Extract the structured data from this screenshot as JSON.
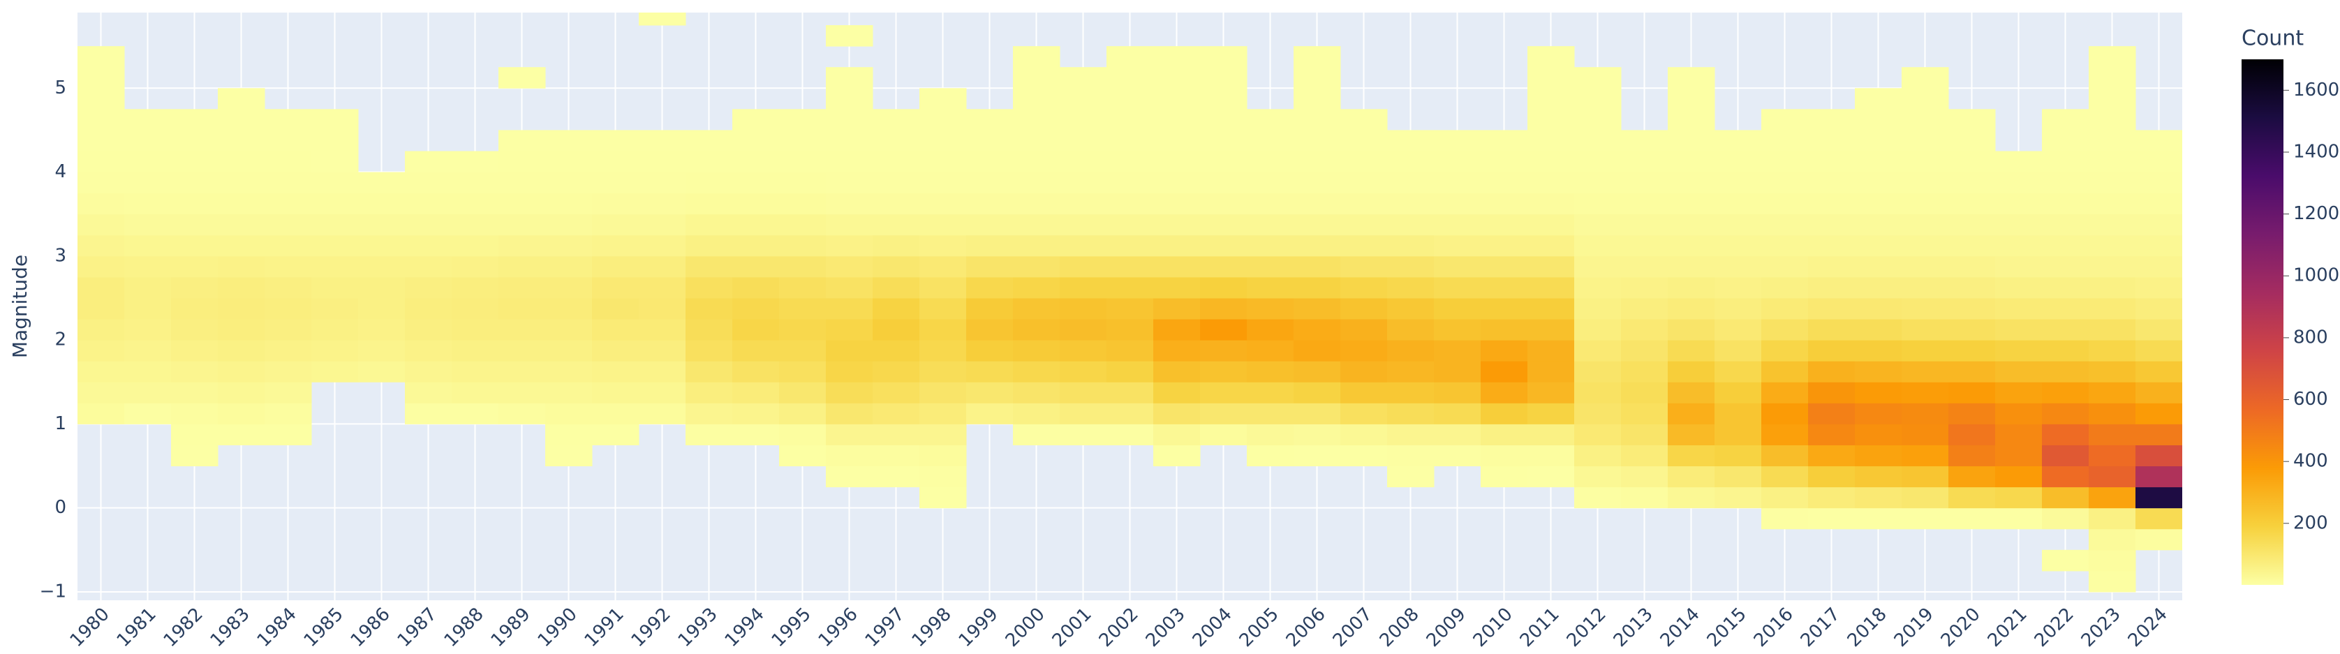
{
  "chart_data": {
    "type": "heatmap",
    "y_label": "Magnitude",
    "colorbar_title": "Count",
    "categories": [
      "1980",
      "1981",
      "1982",
      "1983",
      "1984",
      "1985",
      "1986",
      "1987",
      "1988",
      "1989",
      "1990",
      "1991",
      "1992",
      "1993",
      "1994",
      "1995",
      "1996",
      "1997",
      "1998",
      "1999",
      "2000",
      "2001",
      "2002",
      "2003",
      "2004",
      "2005",
      "2006",
      "2007",
      "2008",
      "2009",
      "2010",
      "2011",
      "2012",
      "2013",
      "2014",
      "2015",
      "2016",
      "2017",
      "2018",
      "2019",
      "2020",
      "2021",
      "2022",
      "2023",
      "2024"
    ],
    "ybins": [
      -1,
      -0.75,
      -0.5,
      -0.25,
      0,
      0.25,
      0.5,
      0.75,
      1,
      1.25,
      1.5,
      1.75,
      2,
      2.25,
      2.5,
      2.75,
      3,
      3.25,
      3.5,
      3.75,
      4,
      4.25,
      4.5,
      4.75,
      5,
      5.25,
      5.5,
      5.75,
      6
    ],
    "ylim": [
      -1.1,
      5.9
    ],
    "yticks": [
      {
        "value": -1,
        "label": "−1"
      },
      0,
      1,
      2,
      3,
      4,
      5
    ],
    "zlim": [
      1,
      1700
    ],
    "zticks": [
      200,
      400,
      600,
      800,
      1000,
      1200,
      1400,
      1600
    ],
    "colorscale": [
      "#fcffa4",
      "#f7d13d",
      "#fb9b06",
      "#ed6925",
      "#cf4446",
      "#a52c60",
      "#781c6d",
      "#4a0c6b",
      "#1b0c41",
      "#000004"
    ],
    "grid": true,
    "z": [
      [
        null,
        null,
        null,
        null,
        null,
        null,
        null,
        null,
        15,
        25,
        35,
        50,
        60,
        70,
        70,
        55,
        40,
        25,
        12,
        5,
        2,
        1,
        1,
        1,
        1,
        1,
        null,
        null
      ],
      [
        null,
        null,
        null,
        null,
        null,
        null,
        null,
        null,
        5,
        25,
        35,
        45,
        55,
        60,
        60,
        50,
        35,
        20,
        10,
        5,
        2,
        1,
        1,
        null,
        null,
        null,
        null,
        null
      ],
      [
        null,
        null,
        null,
        null,
        null,
        null,
        1,
        3,
        10,
        25,
        40,
        55,
        65,
        70,
        65,
        50,
        35,
        20,
        10,
        5,
        2,
        1,
        1,
        null,
        null,
        null,
        null,
        null
      ],
      [
        null,
        null,
        null,
        null,
        null,
        null,
        null,
        3,
        15,
        30,
        45,
        60,
        70,
        75,
        70,
        55,
        35,
        20,
        10,
        5,
        2,
        1,
        1,
        1,
        null,
        null,
        null,
        null
      ],
      [
        null,
        null,
        null,
        null,
        null,
        null,
        null,
        2,
        10,
        25,
        40,
        55,
        65,
        70,
        65,
        50,
        35,
        20,
        10,
        4,
        2,
        1,
        1,
        null,
        null,
        null,
        null,
        null
      ],
      [
        null,
        null,
        null,
        null,
        null,
        null,
        null,
        null,
        null,
        null,
        35,
        50,
        60,
        65,
        60,
        50,
        35,
        20,
        10,
        5,
        1,
        1,
        1,
        null,
        null,
        null,
        null,
        null
      ],
      [
        null,
        null,
        null,
        null,
        null,
        null,
        null,
        null,
        null,
        null,
        30,
        45,
        55,
        60,
        60,
        50,
        35,
        20,
        10,
        5,
        null,
        null,
        null,
        null,
        null,
        null,
        null,
        null
      ],
      [
        null,
        null,
        null,
        null,
        null,
        null,
        null,
        null,
        5,
        25,
        40,
        55,
        65,
        70,
        65,
        50,
        35,
        20,
        10,
        5,
        1,
        null,
        null,
        null,
        null,
        null,
        null,
        null
      ],
      [
        null,
        null,
        null,
        null,
        null,
        null,
        null,
        null,
        5,
        30,
        45,
        60,
        70,
        75,
        70,
        55,
        35,
        20,
        10,
        5,
        1,
        null,
        null,
        null,
        null,
        null,
        null,
        null
      ],
      [
        null,
        null,
        null,
        null,
        null,
        null,
        null,
        null,
        10,
        30,
        45,
        60,
        70,
        80,
        75,
        60,
        40,
        20,
        10,
        5,
        2,
        1,
        null,
        null,
        1,
        null,
        null,
        null
      ],
      [
        null,
        null,
        null,
        null,
        null,
        null,
        1,
        3,
        15,
        30,
        45,
        60,
        70,
        80,
        75,
        60,
        40,
        20,
        10,
        5,
        2,
        1,
        null,
        null,
        null,
        null,
        null,
        null
      ],
      [
        null,
        null,
        null,
        null,
        null,
        null,
        null,
        3,
        15,
        35,
        50,
        70,
        85,
        100,
        90,
        70,
        45,
        25,
        12,
        5,
        2,
        1,
        null,
        null,
        null,
        null,
        null,
        null
      ],
      [
        null,
        null,
        null,
        null,
        null,
        null,
        null,
        null,
        15,
        35,
        50,
        70,
        85,
        95,
        90,
        70,
        45,
        25,
        12,
        5,
        2,
        1,
        null,
        null,
        null,
        null,
        null,
        1
      ],
      [
        null,
        null,
        null,
        null,
        null,
        null,
        null,
        5,
        40,
        70,
        100,
        130,
        140,
        150,
        130,
        100,
        60,
        35,
        15,
        6,
        2,
        1,
        null,
        null,
        null,
        null,
        null,
        null
      ],
      [
        null,
        null,
        null,
        null,
        null,
        null,
        null,
        5,
        45,
        80,
        120,
        150,
        170,
        160,
        140,
        100,
        60,
        35,
        15,
        6,
        2,
        1,
        1,
        null,
        null,
        null,
        null,
        null
      ],
      [
        null,
        null,
        null,
        null,
        null,
        null,
        2,
        10,
        60,
        100,
        130,
        150,
        160,
        150,
        130,
        100,
        60,
        35,
        15,
        6,
        2,
        1,
        1,
        null,
        null,
        null,
        null,
        null
      ],
      [
        null,
        null,
        null,
        null,
        null,
        1,
        10,
        40,
        100,
        140,
        170,
        180,
        170,
        150,
        120,
        90,
        55,
        30,
        12,
        5,
        2,
        1,
        1,
        1,
        1,
        null,
        1,
        null
      ],
      [
        null,
        null,
        null,
        null,
        null,
        1,
        10,
        40,
        90,
        130,
        160,
        180,
        200,
        180,
        140,
        100,
        60,
        30,
        12,
        5,
        2,
        1,
        1,
        null,
        null,
        null,
        null,
        null
      ],
      [
        null,
        null,
        null,
        null,
        1,
        5,
        15,
        40,
        80,
        110,
        140,
        160,
        170,
        150,
        120,
        90,
        55,
        30,
        12,
        5,
        2,
        1,
        1,
        1,
        null,
        null,
        null,
        null
      ],
      [
        null,
        null,
        null,
        null,
        null,
        null,
        null,
        null,
        50,
        100,
        150,
        200,
        230,
        210,
        160,
        110,
        60,
        30,
        12,
        5,
        2,
        1,
        1,
        null,
        null,
        null,
        null,
        null
      ],
      [
        null,
        null,
        null,
        null,
        null,
        null,
        null,
        5,
        60,
        110,
        160,
        210,
        250,
        230,
        170,
        110,
        60,
        30,
        12,
        5,
        2,
        1,
        1,
        1,
        1,
        1,
        null,
        null
      ],
      [
        null,
        null,
        null,
        null,
        null,
        null,
        null,
        5,
        70,
        120,
        170,
        220,
        260,
        240,
        180,
        120,
        60,
        30,
        12,
        5,
        2,
        1,
        1,
        1,
        1,
        null,
        null,
        null
      ],
      [
        null,
        null,
        null,
        null,
        null,
        null,
        null,
        5,
        70,
        120,
        180,
        230,
        250,
        230,
        180,
        120,
        60,
        30,
        12,
        5,
        2,
        1,
        1,
        1,
        1,
        1,
        null,
        null
      ],
      [
        null,
        null,
        null,
        null,
        null,
        null,
        3,
        30,
        110,
        180,
        250,
        310,
        340,
        260,
        180,
        120,
        60,
        30,
        12,
        5,
        2,
        1,
        1,
        1,
        1,
        1,
        null,
        null
      ],
      [
        null,
        null,
        null,
        null,
        null,
        null,
        null,
        15,
        100,
        170,
        240,
        300,
        380,
        280,
        190,
        120,
        60,
        30,
        12,
        5,
        2,
        1,
        1,
        1,
        1,
        1,
        null,
        null
      ],
      [
        null,
        null,
        null,
        null,
        null,
        null,
        3,
        25,
        100,
        170,
        250,
        310,
        340,
        270,
        180,
        120,
        60,
        30,
        12,
        5,
        2,
        1,
        1,
        null,
        null,
        null,
        null,
        null
      ],
      [
        null,
        null,
        null,
        null,
        null,
        null,
        1,
        20,
        100,
        180,
        260,
        330,
        320,
        260,
        180,
        120,
        60,
        30,
        12,
        5,
        2,
        1,
        1,
        1,
        1,
        1,
        null,
        null
      ],
      [
        null,
        null,
        null,
        null,
        null,
        null,
        3,
        30,
        130,
        220,
        290,
        320,
        300,
        240,
        170,
        110,
        60,
        30,
        12,
        5,
        2,
        1,
        1,
        null,
        null,
        null,
        null,
        null
      ],
      [
        null,
        null,
        null,
        null,
        null,
        1,
        5,
        40,
        140,
        220,
        280,
        300,
        260,
        220,
        160,
        110,
        60,
        30,
        12,
        5,
        2,
        1,
        null,
        null,
        null,
        null,
        null,
        null
      ],
      [
        null,
        null,
        null,
        null,
        null,
        null,
        5,
        40,
        150,
        230,
        290,
        290,
        240,
        200,
        150,
        100,
        55,
        30,
        12,
        5,
        2,
        1,
        null,
        null,
        null,
        null,
        null,
        null
      ],
      [
        null,
        null,
        null,
        null,
        null,
        2,
        10,
        60,
        200,
        320,
        380,
        330,
        250,
        200,
        150,
        100,
        55,
        30,
        12,
        5,
        2,
        1,
        null,
        null,
        null,
        null,
        null,
        null
      ],
      [
        null,
        null,
        null,
        null,
        null,
        1,
        10,
        60,
        180,
        280,
        300,
        300,
        250,
        200,
        150,
        100,
        55,
        30,
        12,
        5,
        2,
        1,
        1,
        1,
        1,
        1,
        null,
        null
      ],
      [
        null,
        null,
        null,
        null,
        5,
        30,
        60,
        90,
        110,
        120,
        110,
        90,
        70,
        60,
        50,
        40,
        30,
        20,
        10,
        5,
        2,
        1,
        1,
        1,
        1,
        null,
        null,
        null
      ],
      [
        null,
        null,
        null,
        null,
        10,
        40,
        80,
        110,
        130,
        140,
        130,
        110,
        90,
        70,
        55,
        40,
        30,
        20,
        10,
        5,
        2,
        1,
        null,
        null,
        null,
        null,
        null,
        null
      ],
      [
        null,
        null,
        null,
        null,
        30,
        80,
        170,
        270,
        310,
        260,
        200,
        150,
        110,
        80,
        60,
        40,
        30,
        20,
        10,
        5,
        2,
        1,
        1,
        1,
        1,
        null,
        null,
        null
      ],
      [
        null,
        null,
        null,
        null,
        40,
        100,
        180,
        230,
        230,
        200,
        160,
        120,
        90,
        70,
        55,
        40,
        30,
        20,
        10,
        5,
        2,
        1,
        null,
        null,
        null,
        null,
        null,
        null
      ],
      [
        null,
        null,
        null,
        5,
        60,
        150,
        260,
        360,
        380,
        320,
        240,
        170,
        120,
        85,
        60,
        40,
        30,
        20,
        10,
        5,
        2,
        1,
        1,
        null,
        null,
        null,
        null,
        null
      ],
      [
        null,
        null,
        null,
        3,
        80,
        200,
        330,
        450,
        480,
        400,
        300,
        200,
        140,
        95,
        65,
        45,
        30,
        20,
        10,
        5,
        2,
        1,
        1,
        null,
        null,
        null,
        null,
        null
      ],
      [
        null,
        null,
        null,
        2,
        90,
        220,
        350,
        420,
        450,
        380,
        290,
        200,
        140,
        95,
        65,
        45,
        30,
        20,
        10,
        5,
        2,
        1,
        1,
        1,
        null,
        null,
        null,
        null
      ],
      [
        null,
        null,
        null,
        2,
        100,
        230,
        360,
        430,
        440,
        370,
        280,
        190,
        130,
        90,
        65,
        45,
        30,
        20,
        10,
        5,
        2,
        1,
        1,
        1,
        1,
        null,
        null,
        null
      ],
      [
        null,
        null,
        null,
        3,
        150,
        350,
        480,
        520,
        470,
        380,
        280,
        190,
        130,
        90,
        65,
        45,
        30,
        20,
        10,
        5,
        2,
        1,
        1,
        null,
        null,
        null,
        null,
        null
      ],
      [
        null,
        null,
        null,
        3,
        160,
        380,
        450,
        450,
        420,
        350,
        260,
        180,
        120,
        85,
        60,
        40,
        30,
        20,
        10,
        5,
        2,
        null,
        null,
        null,
        null,
        null,
        null,
        null
      ],
      [
        null,
        1,
        null,
        20,
        260,
        560,
        650,
        560,
        450,
        360,
        260,
        180,
        120,
        85,
        60,
        40,
        30,
        20,
        10,
        5,
        2,
        1,
        1,
        null,
        null,
        null,
        null,
        null
      ],
      [
        5,
        10,
        20,
        60,
        350,
        600,
        560,
        500,
        420,
        340,
        250,
        170,
        120,
        85,
        60,
        40,
        30,
        20,
        10,
        5,
        2,
        1,
        1,
        1,
        1,
        1,
        null,
        null
      ],
      [
        null,
        null,
        10,
        150,
        1500,
        900,
        700,
        500,
        380,
        300,
        220,
        150,
        100,
        75,
        55,
        40,
        30,
        20,
        10,
        5,
        2,
        1,
        null,
        null,
        null,
        null,
        null,
        null
      ]
    ]
  }
}
